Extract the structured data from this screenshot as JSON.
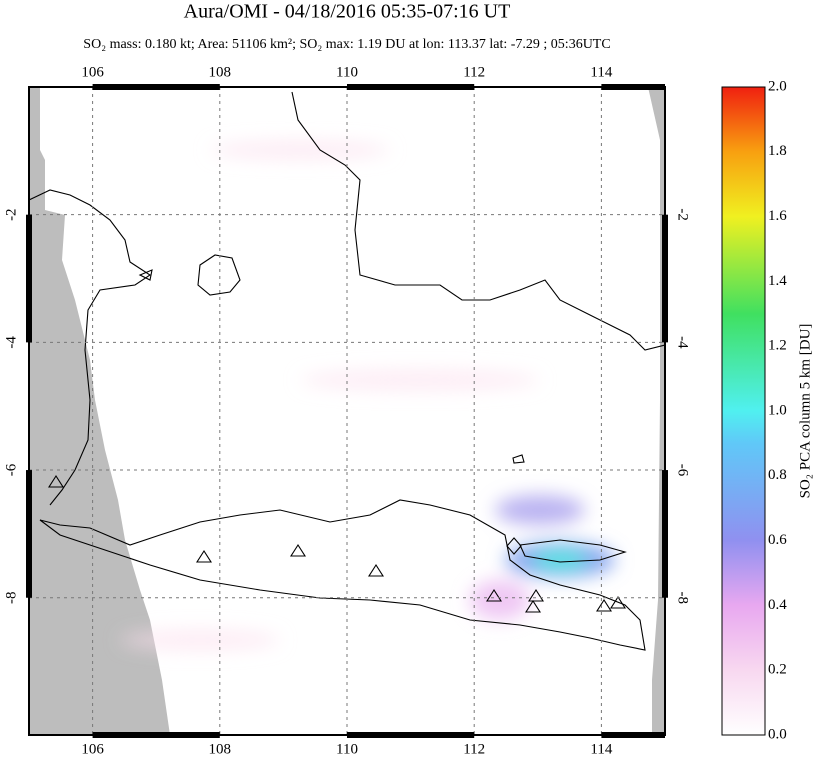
{
  "map": {
    "title": "Aura/OMI - 04/18/2016 05:35-07:16 UT",
    "subtitle": "SO₂ mass: 0.180 kt; Area: 51106 km²; SO₂ max: 1.19 DU at lon: 113.37 lat: -7.29 ; 05:36UTC",
    "xlim": [
      105,
      115
    ],
    "ylim": [
      -10.15,
      0
    ],
    "xticks": [
      106,
      108,
      110,
      112,
      114
    ],
    "yticks": [
      -2,
      -4,
      -6,
      -8
    ],
    "grid": true,
    "colorbar": {
      "label": "SO₂ PCA column 5 km [DU]",
      "lim": [
        0,
        2
      ],
      "ticks": [
        {
          "value": 0,
          "label": "0.0"
        },
        {
          "value": 0.2,
          "label": "0.2"
        },
        {
          "value": 0.4,
          "label": "0.4"
        },
        {
          "value": 0.6,
          "label": "0.6"
        },
        {
          "value": 0.8,
          "label": "0.8"
        },
        {
          "value": 1,
          "label": "1.0"
        },
        {
          "value": 1.2,
          "label": "1.2"
        },
        {
          "value": 1.4,
          "label": "1.4"
        },
        {
          "value": 1.6,
          "label": "1.6"
        },
        {
          "value": 1.8,
          "label": "1.8"
        },
        {
          "value": 2,
          "label": "2.0"
        }
      ]
    }
  }
}
